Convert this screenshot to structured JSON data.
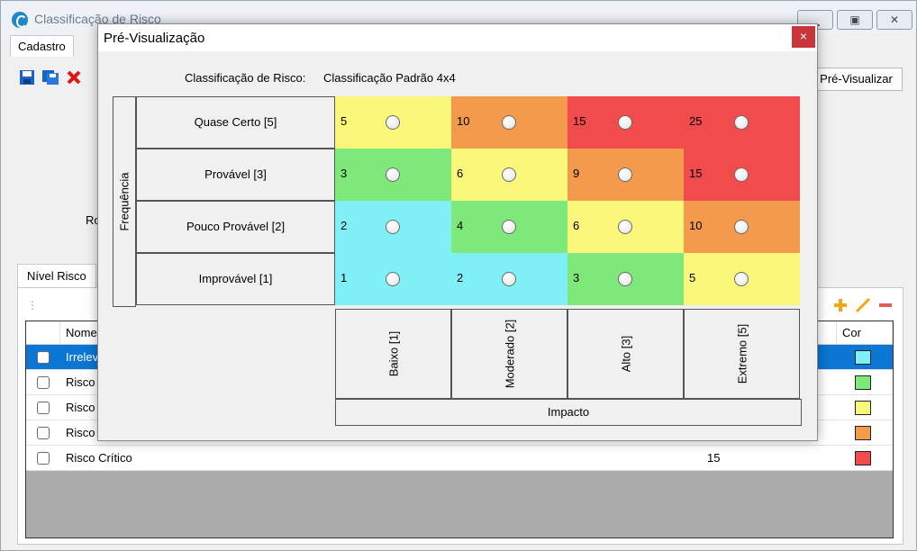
{
  "main": {
    "title": "Classificação de Risco",
    "menu": [
      "Cadastro"
    ],
    "preview_button": "Pré-Visualizar",
    "side_label": "Ro",
    "tab": "Nível Risco",
    "grid": {
      "columns": [
        "Nome",
        "Cor"
      ],
      "rows": [
        {
          "name": "Irreleva",
          "value": "",
          "color": "#7ff0f6",
          "selected": true
        },
        {
          "name": "Risco",
          "value": "",
          "color": "#7fe87a",
          "selected": false
        },
        {
          "name": "Risco",
          "value": "",
          "color": "#fbf77a",
          "selected": false
        },
        {
          "name": "Risco A",
          "value": "",
          "color": "#f39a4c",
          "selected": false
        },
        {
          "name": "Risco Crítico",
          "value": "15",
          "color": "#f24b4b",
          "selected": false
        }
      ]
    }
  },
  "dialog": {
    "title": "Pré-Visualização",
    "close": "×",
    "classif_label": "Classificação de Risco:",
    "classif_value": "Classificação Padrão 4x4",
    "frequency_label": "Frequência",
    "impact_label": "Impacto",
    "rows": [
      "Quase Certo [5]",
      "Provável [3]",
      "Pouco Provável [2]",
      "Improvável [1]"
    ],
    "columns": [
      "Baixo [1]",
      "Moderado [2]",
      "Alto [3]",
      "Extremo [5]"
    ],
    "matrix": [
      [
        {
          "v": "5",
          "c": "#fbf77a"
        },
        {
          "v": "10",
          "c": "#f39a4c"
        },
        {
          "v": "15",
          "c": "#f24b4b"
        },
        {
          "v": "25",
          "c": "#f24b4b"
        }
      ],
      [
        {
          "v": "3",
          "c": "#7fe87a"
        },
        {
          "v": "6",
          "c": "#fbf77a"
        },
        {
          "v": "9",
          "c": "#f39a4c"
        },
        {
          "v": "15",
          "c": "#f24b4b"
        }
      ],
      [
        {
          "v": "2",
          "c": "#7ff0f6"
        },
        {
          "v": "4",
          "c": "#7fe87a"
        },
        {
          "v": "6",
          "c": "#fbf77a"
        },
        {
          "v": "10",
          "c": "#f39a4c"
        }
      ],
      [
        {
          "v": "1",
          "c": "#7ff0f6"
        },
        {
          "v": "2",
          "c": "#7ff0f6"
        },
        {
          "v": "3",
          "c": "#7fe87a"
        },
        {
          "v": "5",
          "c": "#fbf77a"
        }
      ]
    ]
  }
}
